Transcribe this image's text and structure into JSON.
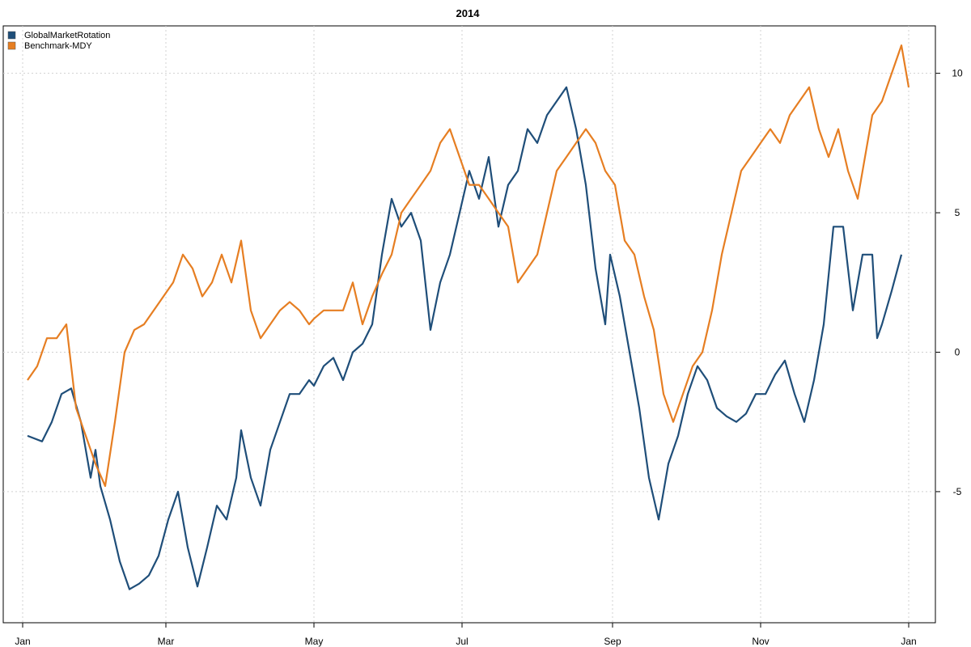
{
  "chart_data": {
    "type": "line",
    "title": "2014",
    "xlabel": "",
    "ylabel": "",
    "x_ticks": [
      "Jan",
      "Mar",
      "May",
      "Jul",
      "Sep",
      "Nov",
      "Jan"
    ],
    "x_tick_days": [
      0,
      59,
      120,
      181,
      243,
      304,
      365
    ],
    "y_ticks": [
      -5,
      0,
      5,
      10
    ],
    "ylim": [
      -9.7,
      11.7
    ],
    "xlim": [
      -8,
      376
    ],
    "grid": true,
    "legend_position": "top-left",
    "y_axis_side": "right",
    "series": [
      {
        "name": "GlobalMarketRotation",
        "color": "#1f4e79",
        "x": [
          2,
          8,
          12,
          16,
          20,
          24,
          28,
          30,
          32,
          36,
          40,
          44,
          48,
          52,
          56,
          60,
          64,
          68,
          72,
          76,
          80,
          84,
          88,
          90,
          94,
          98,
          102,
          106,
          110,
          114,
          118,
          120,
          124,
          128,
          132,
          136,
          140,
          144,
          148,
          152,
          156,
          160,
          164,
          168,
          172,
          176,
          180,
          184,
          188,
          192,
          196,
          200,
          204,
          208,
          212,
          216,
          220,
          224,
          228,
          232,
          236,
          240,
          242,
          246,
          250,
          254,
          258,
          262,
          266,
          270,
          274,
          278,
          282,
          286,
          290,
          294,
          298,
          302,
          306,
          310,
          314,
          318,
          322,
          326,
          330,
          334,
          338,
          342,
          346,
          350,
          352,
          354,
          358,
          362
        ],
        "values": [
          -3.0,
          -3.2,
          -2.5,
          -1.5,
          -1.3,
          -2.5,
          -4.5,
          -3.5,
          -4.8,
          -6.0,
          -7.5,
          -8.5,
          -8.3,
          -8.0,
          -7.3,
          -6.0,
          -5.0,
          -7.0,
          -8.4,
          -7.0,
          -5.5,
          -6.0,
          -4.5,
          -2.8,
          -4.5,
          -5.5,
          -3.5,
          -2.5,
          -1.5,
          -1.5,
          -1.0,
          -1.2,
          -0.5,
          -0.2,
          -1.0,
          0.0,
          0.3,
          1.0,
          3.5,
          5.5,
          4.5,
          5.0,
          4.0,
          0.8,
          2.5,
          3.5,
          5.0,
          6.5,
          5.5,
          7.0,
          4.5,
          6.0,
          6.5,
          8.0,
          7.5,
          8.5,
          9.0,
          9.5,
          8.0,
          6.0,
          3.0,
          1.0,
          3.5,
          2.0,
          0.0,
          -2.0,
          -4.5,
          -6.0,
          -4.0,
          -3.0,
          -1.5,
          -0.5,
          -1.0,
          -2.0,
          -2.3,
          -2.5,
          -2.2,
          -1.5,
          -1.5,
          -0.8,
          -0.3,
          -1.5,
          -2.5,
          -1.0,
          1.0,
          4.5,
          4.5,
          1.5,
          3.5,
          3.5,
          0.5,
          1.0,
          2.2,
          3.5
        ]
      },
      {
        "name": "Benchmark-MDY",
        "color": "#e67e22",
        "x": [
          2,
          6,
          10,
          14,
          18,
          22,
          26,
          30,
          34,
          38,
          42,
          46,
          50,
          54,
          58,
          62,
          66,
          70,
          74,
          78,
          82,
          86,
          90,
          94,
          98,
          102,
          106,
          110,
          114,
          118,
          120,
          124,
          128,
          132,
          136,
          140,
          144,
          148,
          152,
          156,
          160,
          164,
          168,
          172,
          176,
          180,
          184,
          188,
          192,
          196,
          200,
          204,
          208,
          212,
          216,
          220,
          224,
          228,
          232,
          236,
          240,
          244,
          248,
          252,
          256,
          260,
          264,
          268,
          272,
          276,
          280,
          284,
          288,
          292,
          296,
          300,
          304,
          308,
          312,
          316,
          320,
          324,
          328,
          332,
          336,
          340,
          344,
          348,
          350,
          354,
          358,
          362,
          365
        ],
        "values": [
          -1.0,
          -0.5,
          0.5,
          0.5,
          1.0,
          -2.0,
          -3.0,
          -4.0,
          -4.8,
          -2.5,
          0.0,
          0.8,
          1.0,
          1.5,
          2.0,
          2.5,
          3.5,
          3.0,
          2.0,
          2.5,
          3.5,
          2.5,
          4.0,
          1.5,
          0.5,
          1.0,
          1.5,
          1.8,
          1.5,
          1.0,
          1.2,
          1.5,
          1.5,
          1.5,
          2.5,
          1.0,
          2.0,
          2.8,
          3.5,
          5.0,
          5.5,
          6.0,
          6.5,
          7.5,
          8.0,
          7.0,
          6.0,
          6.0,
          5.5,
          5.0,
          4.5,
          2.5,
          3.0,
          3.5,
          5.0,
          6.5,
          7.0,
          7.5,
          8.0,
          7.5,
          6.5,
          6.0,
          4.0,
          3.5,
          2.0,
          0.8,
          -1.5,
          -2.5,
          -1.5,
          -0.5,
          0.0,
          1.5,
          3.5,
          5.0,
          6.5,
          7.0,
          7.5,
          8.0,
          7.5,
          8.5,
          9.0,
          9.5,
          8.0,
          7.0,
          8.0,
          6.5,
          5.5,
          7.5,
          8.5,
          9.0,
          10.0,
          11.0,
          9.5
        ]
      }
    ]
  }
}
